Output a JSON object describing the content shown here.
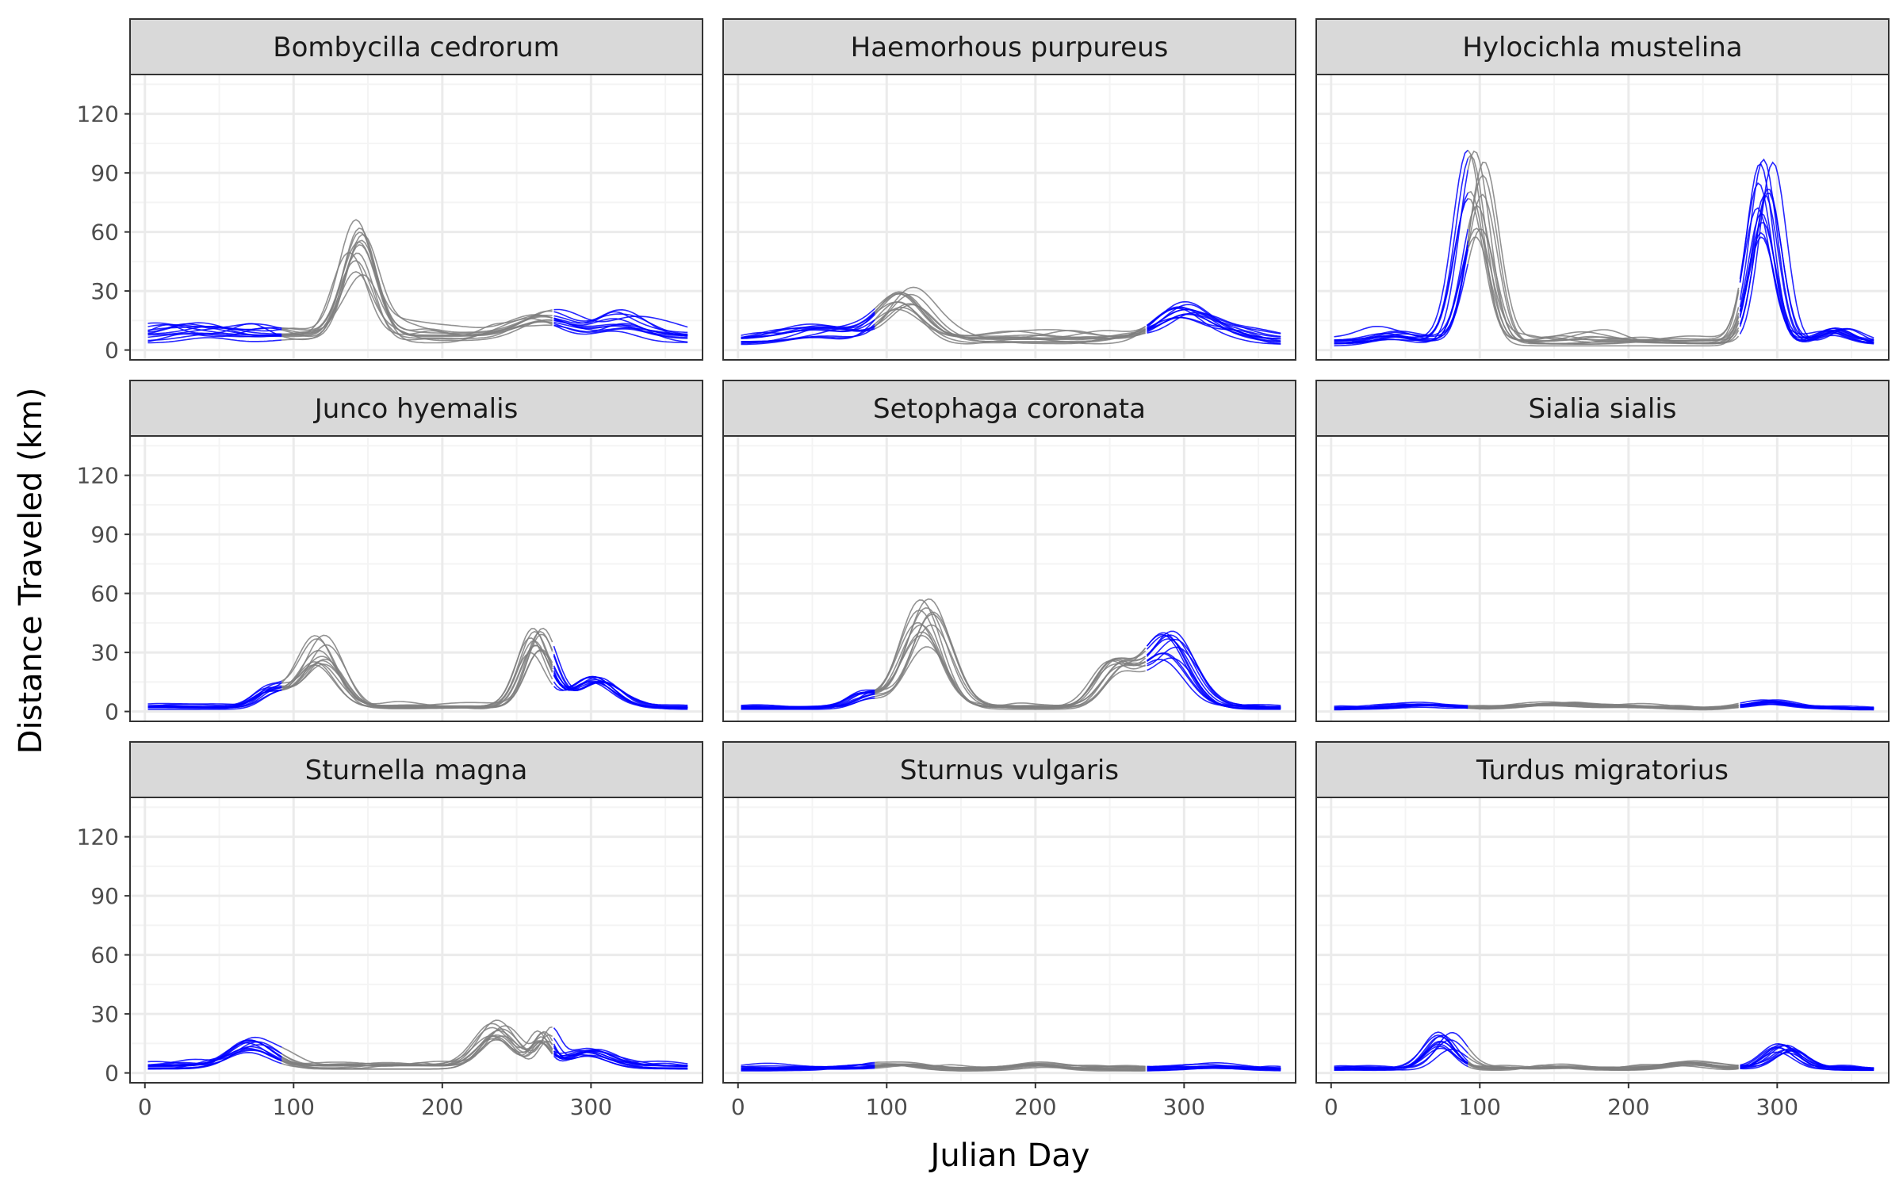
{
  "chart_data": {
    "type": "line",
    "layout": "facet-grid 3x3",
    "xlabel": "Julian Day",
    "ylabel": "Distance Traveled (km)",
    "xlim": [
      -10,
      375
    ],
    "ylim": [
      -5,
      140
    ],
    "x_ticks": [
      0,
      100,
      200,
      300
    ],
    "y_ticks": [
      0,
      30,
      60,
      90,
      120
    ],
    "grid": true,
    "colors": {
      "non_migration": "#0000ff",
      "migration": "#7f7f7f",
      "strip_fill": "#d9d9d9",
      "panel_border": "#333333",
      "grid_major": "#ebebeb",
      "grid_minor": "#f4f4f4"
    },
    "migration_window": [
      92,
      275
    ],
    "panels": [
      {
        "title": "Bombycilla cedrorum",
        "nonmig_level": 7,
        "spring_peak": {
          "day": 143,
          "height": 42,
          "width": 11
        },
        "fall_peak": {
          "day": 268,
          "height": 9,
          "width": 18
        },
        "winter_late": {
          "day": 320,
          "height": 6,
          "width": 15
        },
        "winter_early": {
          "day": 40,
          "height": 3,
          "width": 15
        },
        "curves": 12
      },
      {
        "title": "Haemorhous purpureus",
        "nonmig_level": 5,
        "spring_peak": {
          "day": 112,
          "height": 19,
          "width": 15
        },
        "fall_peak": {
          "day": 300,
          "height": 14,
          "width": 16
        },
        "winter_late": {
          "day": 330,
          "height": 3,
          "width": 15
        },
        "winter_early": {
          "day": 55,
          "height": 5,
          "width": 18
        },
        "curves": 12
      },
      {
        "title": "Hylocichla mustelina",
        "nonmig_level": 4,
        "spring_peak": {
          "day": 97,
          "height": 76,
          "width": 10
        },
        "fall_peak": {
          "day": 292,
          "height": 77,
          "width": 9
        },
        "winter_late": {
          "day": 340,
          "height": 5,
          "width": 10
        },
        "winter_early": {
          "day": 40,
          "height": 4,
          "width": 12
        },
        "curves": 12
      },
      {
        "title": "Junco hyemalis",
        "nonmig_level": 2,
        "spring_peak": {
          "day": 118,
          "height": 30,
          "width": 13
        },
        "fall_peak": {
          "day": 265,
          "height": 33,
          "width": 10
        },
        "winter_late": {
          "day": 305,
          "height": 16,
          "width": 14
        },
        "winter_early": {
          "day": 85,
          "height": 10,
          "width": 10
        },
        "curves": 12
      },
      {
        "title": "Setophaga coronata",
        "nonmig_level": 2,
        "spring_peak": {
          "day": 125,
          "height": 44,
          "width": 14
        },
        "fall_peak": {
          "day": 290,
          "height": 34,
          "width": 15
        },
        "winter_late": {
          "day": 255,
          "height": 22,
          "width": 12
        },
        "winter_early": {
          "day": 85,
          "height": 8,
          "width": 10
        },
        "curves": 12
      },
      {
        "title": "Sialia sialis",
        "nonmig_level": 1.5,
        "spring_peak": {
          "day": 150,
          "height": 2,
          "width": 20
        },
        "fall_peak": {
          "day": 295,
          "height": 3,
          "width": 15
        },
        "winter_late": {
          "day": 200,
          "height": 1,
          "width": 20
        },
        "winter_early": {
          "day": 65,
          "height": 2,
          "width": 15
        },
        "curves": 12
      },
      {
        "title": "Sturnella magna",
        "nonmig_level": 3,
        "spring_peak": {
          "day": 72,
          "height": 11,
          "width": 14
        },
        "fall_peak": {
          "day": 238,
          "height": 17,
          "width": 12
        },
        "winter_late": {
          "day": 300,
          "height": 8,
          "width": 14
        },
        "winter_early": {
          "day": 268,
          "height": 16,
          "width": 6
        },
        "curves": 12
      },
      {
        "title": "Sturnus vulgaris",
        "nonmig_level": 2,
        "spring_peak": {
          "day": 110,
          "height": 2,
          "width": 15
        },
        "fall_peak": {
          "day": 200,
          "height": 2,
          "width": 15
        },
        "winter_late": {
          "day": 320,
          "height": 1,
          "width": 20
        },
        "winter_early": {
          "day": 60,
          "height": 0.5,
          "width": 20
        },
        "curves": 12
      },
      {
        "title": "Turdus migratorius",
        "nonmig_level": 2,
        "spring_peak": {
          "day": 78,
          "height": 14,
          "width": 10
        },
        "fall_peak": {
          "day": 305,
          "height": 12,
          "width": 11
        },
        "winter_late": {
          "day": 240,
          "height": 3,
          "width": 15
        },
        "winter_early": {
          "day": 160,
          "height": 1,
          "width": 15
        },
        "curves": 12
      }
    ]
  }
}
